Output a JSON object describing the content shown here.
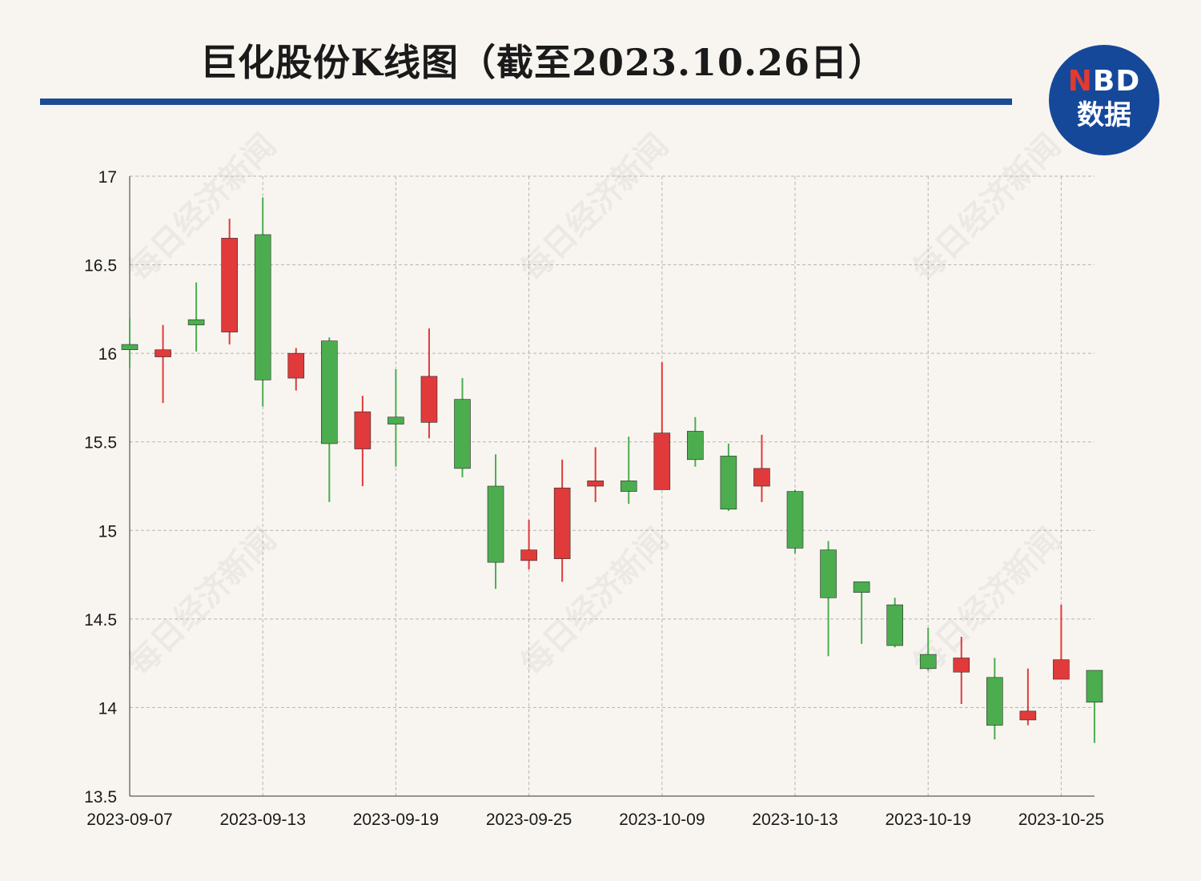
{
  "title": "巨化股份K线图（截至2023.10.26日）",
  "logo": {
    "line1_accent": "N",
    "line1_rest": "BD",
    "line2": "数据"
  },
  "watermark_text": "每日经济新闻",
  "colors": {
    "up": "#e03a3a",
    "down": "#4cad4f",
    "rule": "#1c4c92",
    "logo": "#16489a"
  },
  "chart_data": {
    "type": "candlestick",
    "ylim": [
      13.5,
      17
    ],
    "y_ticks": [
      "13.5",
      "14",
      "14.5",
      "15",
      "15.5",
      "16",
      "16.5",
      "17"
    ],
    "x_tick_labels": [
      "2023-09-07",
      "2023-09-13",
      "2023-09-19",
      "2023-09-25",
      "2023-10-09",
      "2023-10-13",
      "2023-10-19",
      "2023-10-25"
    ],
    "x_tick_positions": [
      0,
      4,
      8,
      12,
      16,
      20,
      24,
      28
    ],
    "grid": true,
    "candles": [
      {
        "date": "2023-09-07",
        "open": 16.05,
        "close": 16.02,
        "high": 16.2,
        "low": 15.92
      },
      {
        "date": "2023-09-08",
        "open": 15.98,
        "close": 16.02,
        "high": 16.16,
        "low": 15.72
      },
      {
        "date": "2023-09-11",
        "open": 16.19,
        "close": 16.16,
        "high": 16.4,
        "low": 16.01
      },
      {
        "date": "2023-09-12",
        "open": 16.12,
        "close": 16.65,
        "high": 16.76,
        "low": 16.05
      },
      {
        "date": "2023-09-13",
        "open": 16.67,
        "close": 15.85,
        "high": 16.88,
        "low": 15.7
      },
      {
        "date": "2023-09-14",
        "open": 15.86,
        "close": 16.0,
        "high": 16.03,
        "low": 15.79
      },
      {
        "date": "2023-09-15",
        "open": 16.07,
        "close": 15.49,
        "high": 16.09,
        "low": 15.16
      },
      {
        "date": "2023-09-18",
        "open": 15.46,
        "close": 15.67,
        "high": 15.76,
        "low": 15.25
      },
      {
        "date": "2023-09-19",
        "open": 15.64,
        "close": 15.6,
        "high": 15.91,
        "low": 15.36
      },
      {
        "date": "2023-09-20",
        "open": 15.61,
        "close": 15.87,
        "high": 16.14,
        "low": 15.52
      },
      {
        "date": "2023-09-21",
        "open": 15.74,
        "close": 15.35,
        "high": 15.86,
        "low": 15.3
      },
      {
        "date": "2023-09-22",
        "open": 15.25,
        "close": 14.82,
        "high": 15.43,
        "low": 14.67
      },
      {
        "date": "2023-09-25",
        "open": 14.83,
        "close": 14.89,
        "high": 15.06,
        "low": 14.78
      },
      {
        "date": "2023-09-26",
        "open": 14.84,
        "close": 15.24,
        "high": 15.4,
        "low": 14.71
      },
      {
        "date": "2023-09-27",
        "open": 15.25,
        "close": 15.28,
        "high": 15.47,
        "low": 15.16
      },
      {
        "date": "2023-09-28",
        "open": 15.28,
        "close": 15.22,
        "high": 15.53,
        "low": 15.15
      },
      {
        "date": "2023-10-09",
        "open": 15.23,
        "close": 15.55,
        "high": 15.95,
        "low": 15.23
      },
      {
        "date": "2023-10-10",
        "open": 15.56,
        "close": 15.4,
        "high": 15.64,
        "low": 15.36
      },
      {
        "date": "2023-10-11",
        "open": 15.42,
        "close": 15.12,
        "high": 15.49,
        "low": 15.11
      },
      {
        "date": "2023-10-12",
        "open": 15.25,
        "close": 15.35,
        "high": 15.54,
        "low": 15.16
      },
      {
        "date": "2023-10-13",
        "open": 15.22,
        "close": 14.9,
        "high": 15.23,
        "low": 14.87
      },
      {
        "date": "2023-10-16",
        "open": 14.89,
        "close": 14.62,
        "high": 14.94,
        "low": 14.29
      },
      {
        "date": "2023-10-17",
        "open": 14.71,
        "close": 14.65,
        "high": 14.71,
        "low": 14.36
      },
      {
        "date": "2023-10-18",
        "open": 14.58,
        "close": 14.35,
        "high": 14.62,
        "low": 14.34
      },
      {
        "date": "2023-10-19",
        "open": 14.3,
        "close": 14.22,
        "high": 14.45,
        "low": 14.21
      },
      {
        "date": "2023-10-20",
        "open": 14.2,
        "close": 14.28,
        "high": 14.4,
        "low": 14.02
      },
      {
        "date": "2023-10-23",
        "open": 14.17,
        "close": 13.9,
        "high": 14.28,
        "low": 13.82
      },
      {
        "date": "2023-10-24",
        "open": 13.93,
        "close": 13.98,
        "high": 14.22,
        "low": 13.9
      },
      {
        "date": "2023-10-25",
        "open": 14.16,
        "close": 14.27,
        "high": 14.58,
        "low": 14.16
      },
      {
        "date": "2023-10-26",
        "open": 14.21,
        "close": 14.03,
        "high": 14.21,
        "low": 13.8
      }
    ]
  }
}
